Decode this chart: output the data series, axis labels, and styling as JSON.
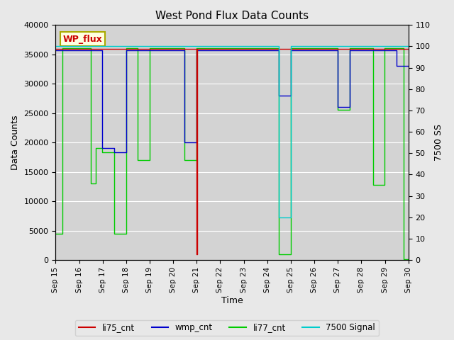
{
  "title": "West Pond Flux Data Counts",
  "xlabel": "Time",
  "ylabel_left": "Data Counts",
  "ylabel_right": "7500 SS",
  "ylim_left": [
    0,
    40000
  ],
  "ylim_right": [
    0,
    110
  ],
  "background_color": "#e8e8e8",
  "plot_bg_color": "#d3d3d3",
  "wp_flux_label": "WP_flux",
  "x_ticks": [
    "Sep 15",
    "Sep 16",
    "Sep 17",
    "Sep 18",
    "Sep 19",
    "Sep 20",
    "Sep 21",
    "Sep 22",
    "Sep 23",
    "Sep 24",
    "Sep 25",
    "Sep 26",
    "Sep 27",
    "Sep 28",
    "Sep 29",
    "Sep 30"
  ],
  "color_li75": "#cc0000",
  "color_wmp": "#0000cc",
  "color_li77": "#00cc00",
  "color_sig": "#00cccc",
  "li77_x": [
    0,
    0.3,
    0.3,
    1.49,
    1.49,
    1.7,
    1.7,
    1.99,
    1.99,
    2.49,
    2.49,
    2.99,
    2.99,
    3.49,
    3.49,
    3.99,
    3.99,
    5.49,
    5.49,
    5.99,
    5.99,
    9.49,
    9.49,
    9.99,
    9.99,
    11.99,
    11.99,
    12.49,
    12.49,
    13.49,
    13.49,
    13.99,
    13.99,
    14.79,
    14.79,
    15.0
  ],
  "li77_y": [
    4500,
    4500,
    36000,
    36000,
    13000,
    13000,
    19000,
    19000,
    18300,
    18300,
    4500,
    4500,
    36000,
    36000,
    17000,
    17000,
    36000,
    36000,
    17000,
    17000,
    36000,
    36000,
    1000,
    1000,
    36000,
    36000,
    25600,
    25600,
    36000,
    36000,
    12800,
    12800,
    36000,
    36000,
    100,
    100
  ],
  "wmp_x": [
    0,
    1.99,
    1.99,
    2.49,
    2.49,
    2.99,
    2.99,
    5.49,
    5.49,
    5.99,
    5.99,
    9.49,
    9.49,
    9.99,
    9.99,
    11.99,
    11.99,
    12.49,
    12.49,
    14.49,
    14.49,
    15.0
  ],
  "wmp_y": [
    35700,
    35700,
    19000,
    19000,
    18300,
    18300,
    35700,
    35700,
    20000,
    20000,
    35700,
    35700,
    28000,
    28000,
    35700,
    35700,
    26000,
    26000,
    35700,
    35700,
    33000,
    33000
  ],
  "li75_x": [
    0,
    5.99,
    5.99,
    6.01,
    6.01,
    15.0
  ],
  "li75_y": [
    35900,
    35900,
    1000,
    1000,
    35900,
    35900
  ],
  "sig_x": [
    0,
    9.49,
    9.49,
    9.99,
    9.99,
    15.0
  ],
  "sig_y": [
    100,
    100,
    20,
    20,
    100,
    100
  ]
}
